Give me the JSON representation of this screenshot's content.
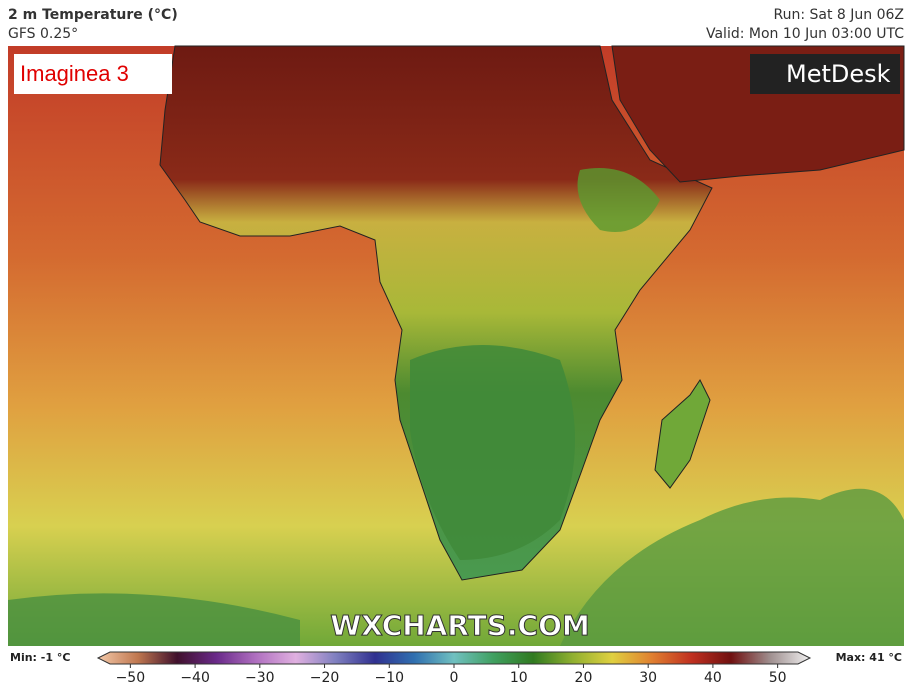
{
  "header": {
    "title": "2 m Temperature (°C)",
    "model": "GFS 0.25°",
    "run": "Run: Sat 8 Jun 06Z",
    "valid": "Valid: Mon 10 Jun 03:00 UTC"
  },
  "overlay": {
    "label": "Imaginea 3",
    "brand": "MetDesk",
    "watermark": "WXCHARTS.COM"
  },
  "colorbar": {
    "min_label": "Min: -1 °C",
    "max_label": "Max: 41 °C",
    "lim": [
      -55,
      55
    ],
    "ticks": [
      {
        "value": -50,
        "label": "−50"
      },
      {
        "value": -40,
        "label": "−40"
      },
      {
        "value": -30,
        "label": "−30"
      },
      {
        "value": -20,
        "label": "−20"
      },
      {
        "value": -10,
        "label": "−10"
      },
      0,
      10,
      20,
      30,
      40,
      50
    ],
    "colors": [
      "#f3c8a8",
      "#c07850",
      "#40102c",
      "#6a2a8a",
      "#b070c0",
      "#e0b0e0",
      "#8080c0",
      "#303090",
      "#3070b0",
      "#70c0c0",
      "#40a060",
      "#307a20",
      "#90b030",
      "#e0d040",
      "#e08030",
      "#c03020",
      "#701010",
      "#a09090",
      "#f0f0f0"
    ]
  }
}
